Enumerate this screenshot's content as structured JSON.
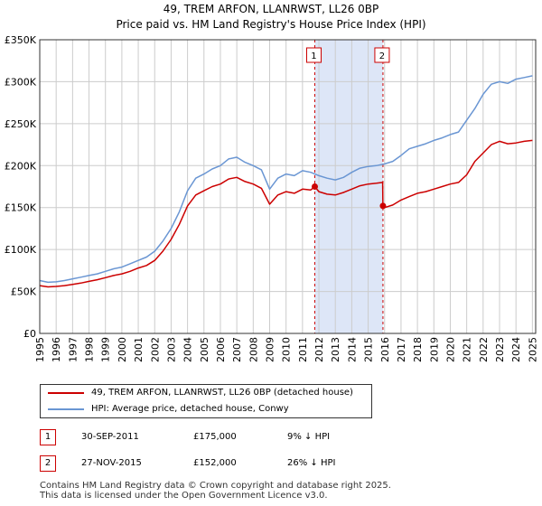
{
  "title": {
    "line1": "49, TREM ARFON, LLANRWST, LL26 0BP",
    "line2": "Price paid vs. HM Land Registry's House Price Index (HPI)"
  },
  "colors": {
    "price": "#cc0000",
    "hpi": "#6a96d3",
    "shade": "#dde6f7",
    "grid": "#cccccc"
  },
  "legend": {
    "price_label": "49, TREM ARFON, LLANRWST, LL26 0BP (detached house)",
    "hpi_label": "HPI: Average price, detached house, Conwy"
  },
  "sales": [
    {
      "num": "1",
      "date": "30-SEP-2011",
      "price": "£175,000",
      "hpi_diff": "9% ↓ HPI"
    },
    {
      "num": "2",
      "date": "27-NOV-2015",
      "price": "£152,000",
      "hpi_diff": "26% ↓ HPI"
    }
  ],
  "footer": {
    "line1": "Contains HM Land Registry data © Crown copyright and database right 2025.",
    "line2": "This data is licensed under the Open Government Licence v3.0."
  },
  "chart_data": {
    "type": "line",
    "title": "Price paid vs. HM Land Registry's House Price Index (HPI)",
    "xlim": [
      1995,
      2025.2
    ],
    "ylim": [
      0,
      350000
    ],
    "x_ticks": [
      1995,
      1996,
      1997,
      1998,
      1999,
      2000,
      2001,
      2002,
      2003,
      2004,
      2005,
      2006,
      2007,
      2008,
      2009,
      2010,
      2011,
      2012,
      2013,
      2014,
      2015,
      2016,
      2017,
      2018,
      2019,
      2020,
      2021,
      2022,
      2023,
      2024,
      2025
    ],
    "y_ticks": [
      0,
      50000,
      100000,
      150000,
      200000,
      250000,
      300000,
      350000
    ],
    "y_tick_labels": [
      "£0",
      "£50K",
      "£100K",
      "£150K",
      "£200K",
      "£250K",
      "£300K",
      "£350K"
    ],
    "shaded_region": [
      2011.75,
      2015.9
    ],
    "markers": [
      {
        "label": "1",
        "x": 2011.75,
        "y": 175000
      },
      {
        "label": "2",
        "x": 2015.9,
        "y": 152000
      }
    ],
    "series": [
      {
        "name": "HPI: Average price, detached house, Conwy",
        "x": [
          1995,
          1995.5,
          1996,
          1996.5,
          1997,
          1997.5,
          1998,
          1998.5,
          1999,
          1999.5,
          2000,
          2000.5,
          2001,
          2001.5,
          2002,
          2002.5,
          2003,
          2003.5,
          2004,
          2004.5,
          2005,
          2005.5,
          2006,
          2006.5,
          2007,
          2007.5,
          2008,
          2008.5,
          2009,
          2009.5,
          2010,
          2010.5,
          2011,
          2011.5,
          2012,
          2012.5,
          2013,
          2013.5,
          2014,
          2014.5,
          2015,
          2015.5,
          2016,
          2016.5,
          2017,
          2017.5,
          2018,
          2018.5,
          2019,
          2019.5,
          2020,
          2020.5,
          2021,
          2021.5,
          2022,
          2022.5,
          2023,
          2023.5,
          2024,
          2024.5,
          2025
        ],
        "values": [
          63000,
          61000,
          61500,
          63000,
          65000,
          67000,
          69000,
          71000,
          74000,
          77000,
          79000,
          83000,
          87000,
          91000,
          98000,
          110000,
          125000,
          145000,
          170000,
          185000,
          190000,
          196000,
          200000,
          208000,
          210000,
          204000,
          200000,
          195000,
          172000,
          185000,
          190000,
          188000,
          194000,
          192000,
          188000,
          185000,
          183000,
          186000,
          192000,
          197000,
          199000,
          200000,
          202000,
          205000,
          212000,
          220000,
          223000,
          226000,
          230000,
          233000,
          237000,
          240000,
          254000,
          268000,
          285000,
          297000,
          300000,
          298000,
          303000,
          305000,
          307000
        ]
      },
      {
        "name": "49, TREM ARFON, LLANRWST, LL26 0BP (detached house)",
        "x": [
          1995,
          1995.5,
          1996,
          1996.5,
          1997,
          1997.5,
          1998,
          1998.5,
          1999,
          1999.5,
          2000,
          2000.5,
          2001,
          2001.5,
          2002,
          2002.5,
          2003,
          2003.5,
          2004,
          2004.5,
          2005,
          2005.5,
          2006,
          2006.5,
          2007,
          2007.5,
          2008,
          2008.5,
          2009,
          2009.5,
          2010,
          2010.5,
          2011,
          2011.5,
          2011.75,
          2012,
          2012.5,
          2013,
          2013.5,
          2014,
          2014.5,
          2015,
          2015.5,
          2015.88,
          2015.9,
          2016,
          2016.5,
          2017,
          2017.5,
          2018,
          2018.5,
          2019,
          2019.5,
          2020,
          2020.5,
          2021,
          2021.5,
          2022,
          2022.5,
          2023,
          2023.5,
          2024,
          2024.5,
          2025
        ],
        "values": [
          57000,
          55500,
          56000,
          57000,
          58500,
          60000,
          62000,
          64000,
          66500,
          69000,
          71000,
          74000,
          78000,
          81000,
          87000,
          98000,
          112000,
          130000,
          152000,
          165000,
          170000,
          175000,
          178000,
          184000,
          186000,
          181000,
          178000,
          173000,
          154000,
          165000,
          169000,
          167000,
          172000,
          171000,
          175000,
          169000,
          166000,
          165000,
          168000,
          172000,
          176000,
          178000,
          179000,
          180000,
          152000,
          150000,
          153000,
          159000,
          163000,
          167000,
          169000,
          172000,
          175000,
          178000,
          180000,
          189000,
          205000,
          215000,
          225000,
          229000,
          226000,
          227000,
          229000,
          230000
        ]
      }
    ]
  }
}
